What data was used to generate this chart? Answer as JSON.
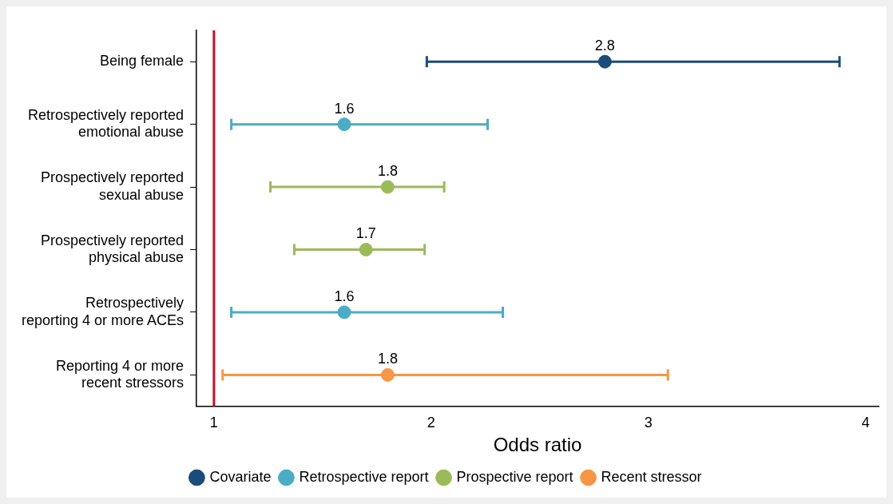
{
  "chart_data": {
    "type": "scatter",
    "orientation": "horizontal",
    "xlabel": "Odds ratio",
    "categories": [
      "Being female",
      "Retrospectively reported emotional abuse",
      "Prospectively reported sexual abuse",
      "Prospectively reported physical abuse",
      "Retrospectively reporting 4 or more ACEs",
      "Reporting 4 or more recent stressors"
    ],
    "series": [
      {
        "name": "Covariate",
        "color": "#1b4b7a",
        "values": [
          2.8,
          null,
          null,
          null,
          null,
          null
        ],
        "errors": [
          [
            1.98,
            3.88
          ],
          null,
          null,
          null,
          null,
          null
        ]
      },
      {
        "name": "Retrospective report",
        "color": "#4bacc6",
        "values": [
          null,
          1.6,
          null,
          null,
          1.6,
          null
        ],
        "errors": [
          null,
          [
            1.08,
            2.26
          ],
          null,
          null,
          [
            1.08,
            2.33
          ],
          null
        ]
      },
      {
        "name": "Prospective report",
        "color": "#9bbb59",
        "values": [
          null,
          null,
          1.8,
          1.7,
          null,
          null
        ],
        "errors": [
          null,
          null,
          [
            1.26,
            2.06
          ],
          [
            1.37,
            1.97
          ],
          null,
          null
        ]
      },
      {
        "name": "Recent stressor",
        "color": "#f79646",
        "values": [
          null,
          null,
          null,
          null,
          null,
          1.8
        ],
        "errors": [
          null,
          null,
          null,
          null,
          null,
          [
            1.04,
            3.09
          ]
        ]
      }
    ],
    "xlim": [
      0.92,
      4.06
    ],
    "xticks": [
      1,
      2,
      3,
      4
    ],
    "ref_lines": [
      {
        "axis": "x",
        "value": 1,
        "color": "#c8102e"
      }
    ],
    "data_labels": true,
    "grid": false,
    "legend": "bottom",
    "marker": "circle"
  }
}
